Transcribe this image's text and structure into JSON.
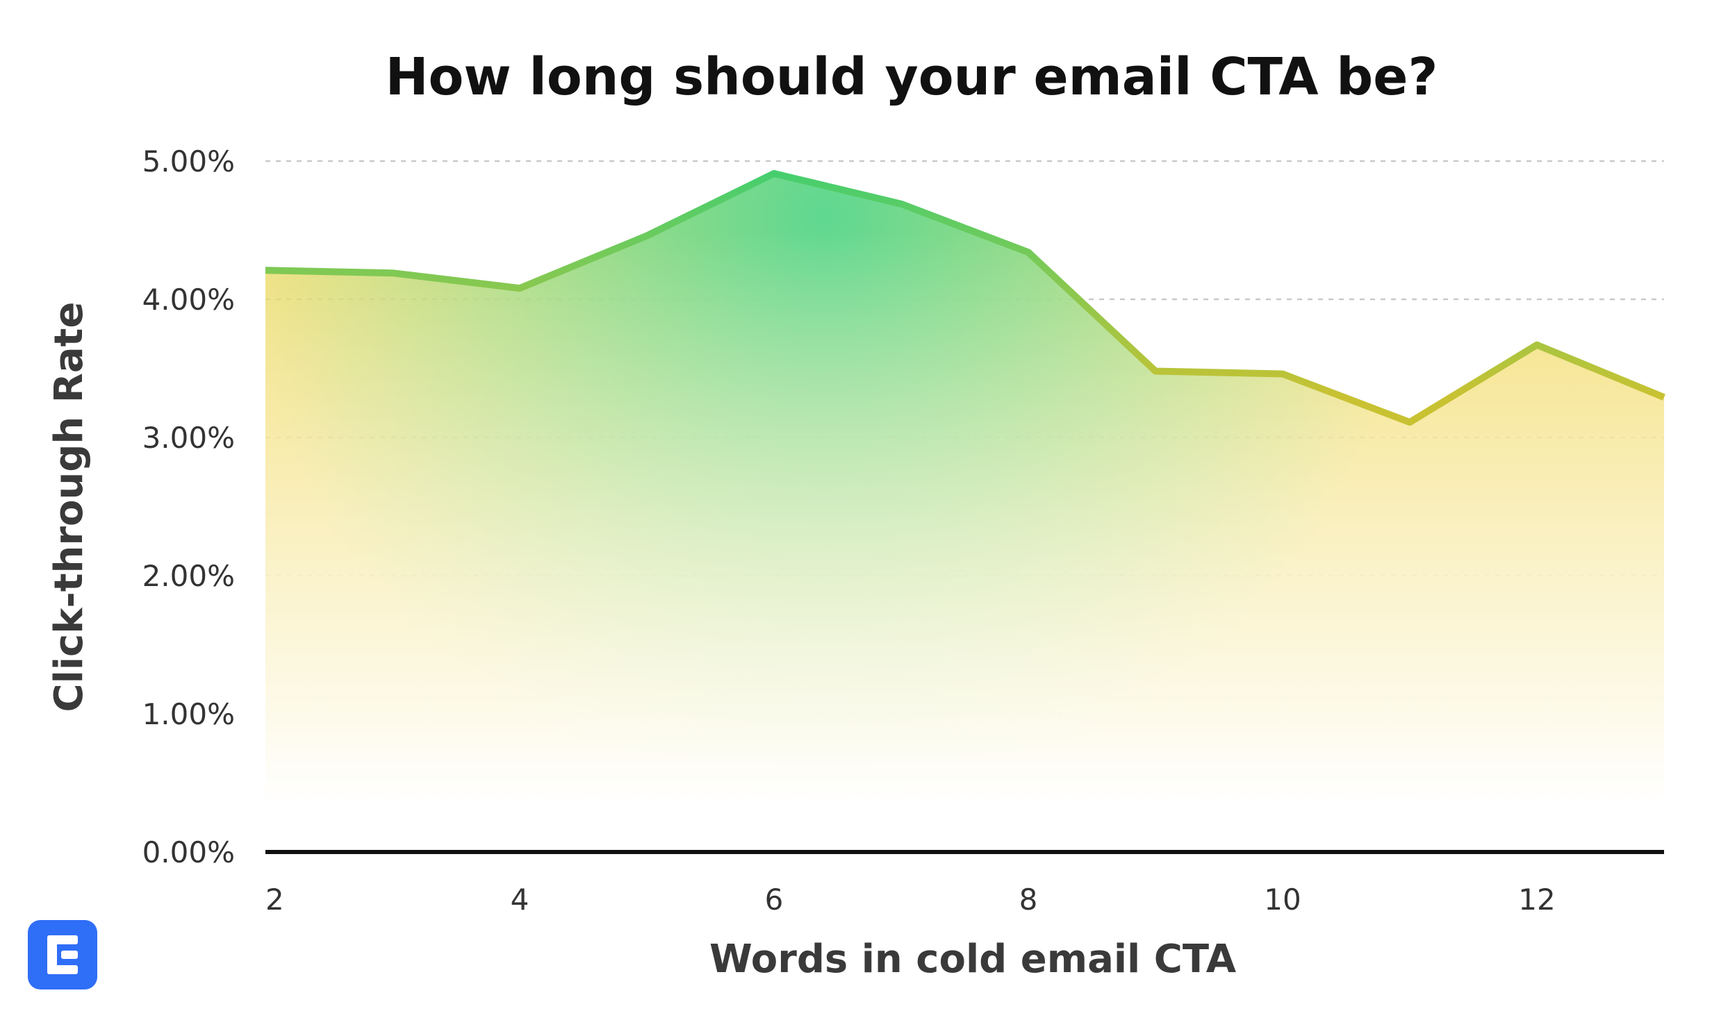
{
  "chart_data": {
    "type": "area",
    "title": "How long should your email CTA be?",
    "xlabel": "Words in cold email CTA",
    "ylabel": "Click-through Rate",
    "x": [
      2,
      3,
      4,
      5,
      6,
      7,
      8,
      9,
      10,
      11,
      12,
      13
    ],
    "series": [
      {
        "values": [
          0.0421,
          0.0419,
          0.0408,
          0.0446,
          0.0491,
          0.0469,
          0.0434,
          0.0348,
          0.0346,
          0.0311,
          0.0367,
          0.0329
        ]
      }
    ],
    "xlim": [
      2,
      13
    ],
    "ylim": [
      0,
      0.05
    ],
    "xticks": [
      2,
      4,
      6,
      8,
      10,
      12
    ],
    "xtick_labels": [
      "2",
      "4",
      "6",
      "8",
      "10",
      "12"
    ],
    "yticks": [
      0,
      0.01,
      0.02,
      0.03,
      0.04,
      0.05
    ],
    "ytick_labels": [
      "0.00%",
      "1.00%",
      "2.00%",
      "3.00%",
      "4.00%",
      "5.00%"
    ],
    "grid": true,
    "legend": "none",
    "colors": {
      "line_high": "#3ecf72",
      "line_low": "#c8c232",
      "fill_high": "#5fd890",
      "fill_low": "#f0d550",
      "axis": "#111111",
      "grid": "#c9c9c9"
    }
  },
  "logo": {
    "icon": "document-e-logo-icon",
    "color": "#2f6ef7"
  }
}
